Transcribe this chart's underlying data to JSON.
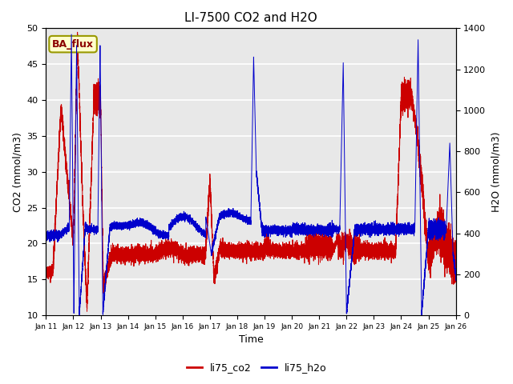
{
  "title": "LI-7500 CO2 and H2O",
  "xlabel": "Time",
  "ylabel_left": "CO2 (mmol/m3)",
  "ylabel_right": "H2O (mmol/m3)",
  "xlim": [
    0,
    15
  ],
  "ylim_left": [
    10,
    50
  ],
  "ylim_right": [
    0,
    1400
  ],
  "xtick_labels": [
    "Jan 11",
    "Jan 12",
    "Jan 13",
    "Jan 14",
    "Jan 15",
    "Jan 16",
    "Jan 17",
    "Jan 18",
    "Jan 19",
    "Jan 20",
    "Jan 21",
    "Jan 22",
    "Jan 23",
    "Jan 24",
    "Jan 25",
    "Jan 26"
  ],
  "yticks_left": [
    10,
    15,
    20,
    25,
    30,
    35,
    40,
    45,
    50
  ],
  "yticks_right": [
    0,
    200,
    400,
    600,
    800,
    1000,
    1200,
    1400
  ],
  "legend_labels": [
    "li75_co2",
    "li75_h2o"
  ],
  "co2_color": "#cc0000",
  "h2o_color": "#0000cc",
  "annotation_text": "BA_flux",
  "annotation_bg": "#ffffcc",
  "annotation_border": "#999900",
  "bg_color": "#e8e8e8",
  "grid_color": "#ffffff",
  "title_fontsize": 11,
  "label_fontsize": 9,
  "tick_fontsize": 8
}
